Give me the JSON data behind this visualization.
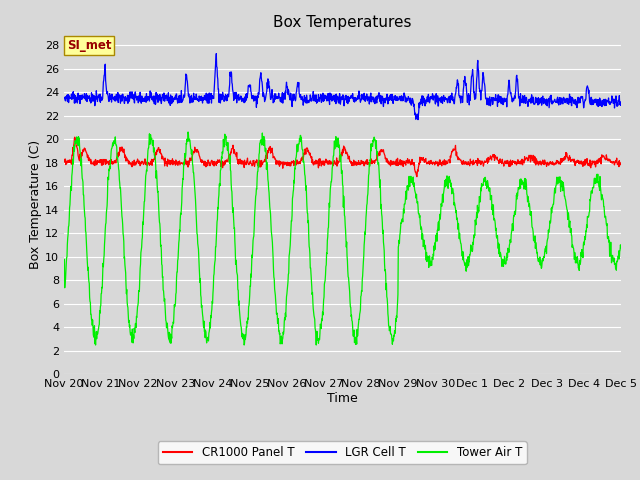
{
  "title": "Box Temperatures",
  "xlabel": "Time",
  "ylabel": "Box Temperature (C)",
  "ylim": [
    0,
    29
  ],
  "yticks": [
    0,
    2,
    4,
    6,
    8,
    10,
    12,
    14,
    16,
    18,
    20,
    22,
    24,
    26,
    28
  ],
  "bg_color": "#d8d8d8",
  "grid_color": "#ffffff",
  "legend_labels": [
    "CR1000 Panel T",
    "LGR Cell T",
    "Tower Air T"
  ],
  "watermark_text": "SI_met",
  "watermark_bg": "#ffff99",
  "watermark_border": "#aa8800",
  "watermark_color": "#990000",
  "x_labels": [
    "Nov 20",
    "Nov 21",
    "Nov 22",
    "Nov 23",
    "Nov 24",
    "Nov 25",
    "Nov 26",
    "Nov 27",
    "Nov 28",
    "Nov 29",
    "Nov 30",
    "Dec 1",
    "Dec 2",
    "Dec 3",
    "Dec 4",
    "Dec 5"
  ],
  "title_fontsize": 11,
  "axis_fontsize": 9,
  "tick_fontsize": 8
}
